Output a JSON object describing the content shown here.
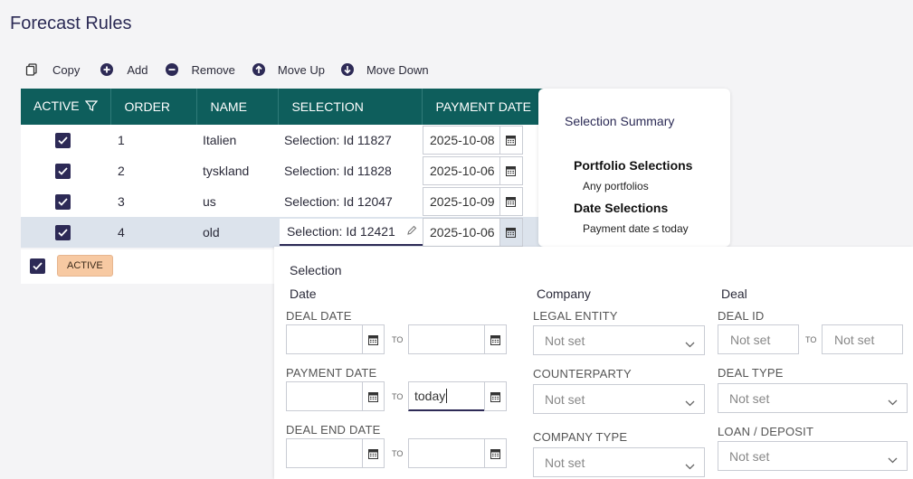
{
  "page": {
    "title": "Forecast Rules"
  },
  "toolbar": {
    "copy": "Copy",
    "add": "Add",
    "remove": "Remove",
    "move_up": "Move Up",
    "move_down": "Move Down"
  },
  "grid": {
    "columns": {
      "active": "ACTIVE",
      "order": "ORDER",
      "name": "NAME",
      "selection": "SELECTION",
      "payment_date": "PAYMENT DATE"
    },
    "rows": [
      {
        "active": true,
        "order": "1",
        "name": "Italien",
        "selection": "Selection: Id 11827",
        "payment_date": "2025-10-08"
      },
      {
        "active": true,
        "order": "2",
        "name": "tyskland",
        "selection": "Selection: Id 11828",
        "payment_date": "2025-10-06"
      },
      {
        "active": true,
        "order": "3",
        "name": "us",
        "selection": "Selection: Id 12047",
        "payment_date": "2025-10-09"
      },
      {
        "active": true,
        "order": "4",
        "name": "old",
        "selection": "Selection: Id 12421",
        "payment_date": "2025-10-06"
      }
    ],
    "filter_chip": "ACTIVE"
  },
  "summary": {
    "title": "Selection Summary",
    "portfolio_heading": "Portfolio Selections",
    "portfolio_text": "Any portfolios",
    "date_heading": "Date Selections",
    "date_text": "Payment date ≤ today"
  },
  "selection_panel": {
    "title": "Selection",
    "date_group": "Date",
    "company_group": "Company",
    "deal_group": "Deal",
    "deal_date_label": "DEAL DATE",
    "payment_date_label": "PAYMENT DATE",
    "deal_end_date_label": "DEAL END DATE",
    "to": "TO",
    "payment_date_to_value": "today",
    "legal_entity_label": "LEGAL ENTITY",
    "counterparty_label": "COUNTERPARTY",
    "company_type_label": "COMPANY TYPE",
    "deal_id_label": "DEAL ID",
    "deal_type_label": "DEAL TYPE",
    "loan_deposit_label": "LOAN / DEPOSIT",
    "not_set": "Not set"
  },
  "colors": {
    "header": "#0e5e5c",
    "accent": "#2d2a56",
    "chip": "#f7c9a2"
  }
}
